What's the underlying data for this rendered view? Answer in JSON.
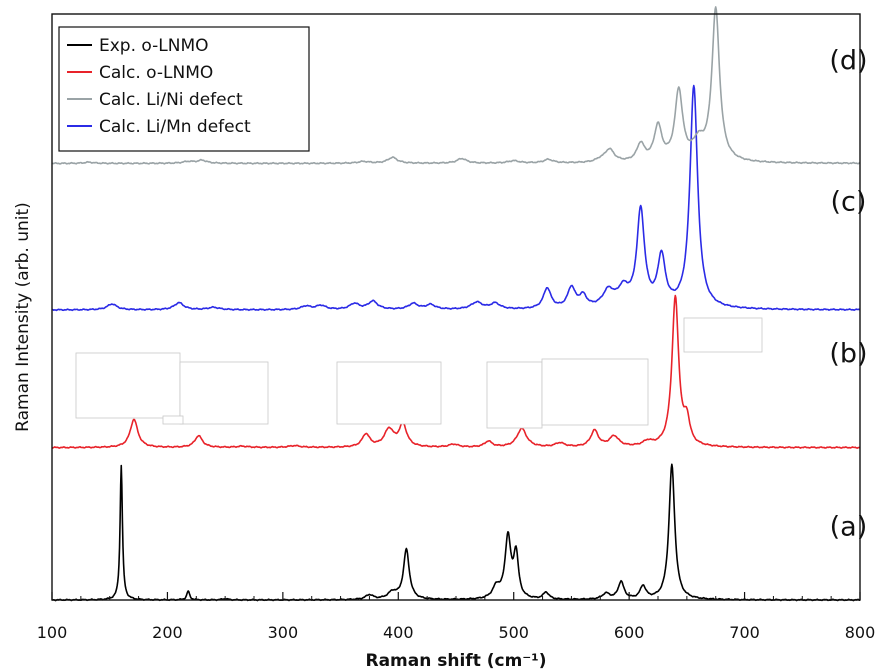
{
  "chart_data": {
    "type": "line",
    "title": "",
    "xlabel": "Raman shift (cm⁻¹)",
    "ylabel": "Raman Intensity (arb. unit)",
    "xlim": [
      100,
      800
    ],
    "xticks": [
      "100",
      "200",
      "300",
      "400",
      "500",
      "600",
      "700",
      "800"
    ],
    "xtick_values": [
      100,
      200,
      300,
      400,
      500,
      600,
      700,
      800
    ],
    "ylim": [
      0,
      10
    ],
    "grid": false,
    "legend_position": "top-left",
    "panel_labels": [
      {
        "text": "(a)",
        "x": 790,
        "y": 1.1
      },
      {
        "text": "(b)",
        "x": 790,
        "y": 4.05
      },
      {
        "text": "(c)",
        "x": 790,
        "y": 6.65
      },
      {
        "text": "(d)",
        "x": 790,
        "y": 9.05
      }
    ],
    "series": [
      {
        "name": "Exp. o-LNMO",
        "color": "#000000",
        "baseline": 0.0,
        "width": 1.6,
        "peaks": [
          [
            160,
            2.3,
            1.2
          ],
          [
            218,
            0.15,
            1.5
          ],
          [
            250,
            0.02,
            3
          ],
          [
            375,
            0.08,
            4
          ],
          [
            395,
            0.12,
            5
          ],
          [
            407,
            0.85,
            3
          ],
          [
            485,
            0.2,
            4
          ],
          [
            495,
            1.05,
            3
          ],
          [
            502,
            0.75,
            2.5
          ],
          [
            528,
            0.12,
            3
          ],
          [
            580,
            0.1,
            4
          ],
          [
            593,
            0.3,
            3
          ],
          [
            612,
            0.22,
            3
          ],
          [
            637,
            2.3,
            3
          ]
        ]
      },
      {
        "name": "Calc. o-LNMO",
        "color": "#e8232a",
        "baseline": 2.6,
        "width": 1.6,
        "peaks": [
          [
            171,
            0.48,
            4
          ],
          [
            227,
            0.2,
            4
          ],
          [
            265,
            0.02,
            6
          ],
          [
            310,
            0.03,
            6
          ],
          [
            372,
            0.22,
            4
          ],
          [
            392,
            0.3,
            5
          ],
          [
            404,
            0.38,
            4
          ],
          [
            448,
            0.05,
            5
          ],
          [
            478,
            0.1,
            4
          ],
          [
            507,
            0.32,
            5
          ],
          [
            540,
            0.07,
            5
          ],
          [
            570,
            0.28,
            4
          ],
          [
            587,
            0.18,
            5
          ],
          [
            616,
            0.08,
            5
          ],
          [
            640,
            2.55,
            3.5
          ],
          [
            650,
            0.4,
            3
          ]
        ]
      },
      {
        "name": "Calc. Li/Mn defect",
        "color": "#2b2be6",
        "baseline": 4.95,
        "width": 1.6,
        "peaks": [
          [
            152,
            0.1,
            5
          ],
          [
            210,
            0.12,
            5
          ],
          [
            240,
            0.04,
            6
          ],
          [
            320,
            0.06,
            5
          ],
          [
            333,
            0.07,
            5
          ],
          [
            362,
            0.1,
            5
          ],
          [
            378,
            0.14,
            5
          ],
          [
            413,
            0.1,
            5
          ],
          [
            428,
            0.08,
            5
          ],
          [
            468,
            0.12,
            6
          ],
          [
            484,
            0.1,
            5
          ],
          [
            529,
            0.35,
            4
          ],
          [
            550,
            0.35,
            4
          ],
          [
            560,
            0.2,
            4
          ],
          [
            582,
            0.28,
            6
          ],
          [
            595,
            0.3,
            6
          ],
          [
            610,
            1.65,
            4
          ],
          [
            628,
            0.85,
            4
          ],
          [
            656,
            3.8,
            4
          ]
        ]
      },
      {
        "name": "Calc. Li/Ni defect",
        "color": "#9aa3a6",
        "baseline": 7.45,
        "width": 1.6,
        "peaks": [
          [
            132,
            0.02,
            5
          ],
          [
            218,
            0.03,
            6
          ],
          [
            230,
            0.05,
            5
          ],
          [
            370,
            0.03,
            6
          ],
          [
            395,
            0.1,
            5
          ],
          [
            455,
            0.08,
            5
          ],
          [
            500,
            0.04,
            6
          ],
          [
            530,
            0.06,
            5
          ],
          [
            575,
            0.04,
            5
          ],
          [
            583,
            0.22,
            5
          ],
          [
            610,
            0.3,
            4
          ],
          [
            625,
            0.6,
            4
          ],
          [
            643,
            1.2,
            4
          ],
          [
            660,
            0.3,
            6
          ],
          [
            675,
            2.6,
            4
          ]
        ]
      }
    ],
    "legend_order": [
      0,
      1,
      3,
      2
    ]
  }
}
